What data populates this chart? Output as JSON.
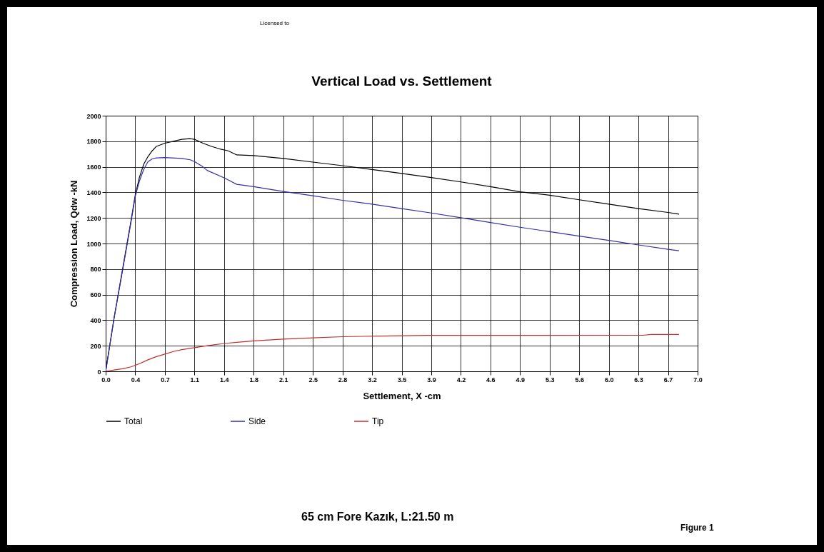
{
  "chart_data": {
    "type": "line",
    "title": "Vertical Load vs. Settlement",
    "xlabel": "Settlement, X -cm",
    "ylabel": "Compression Load,  Qdw -kN",
    "annotations": [
      "Licensed to",
      "65 cm Fore Kazık, L:21.50 m",
      "Figure 1"
    ],
    "xlim": [
      0,
      7
    ],
    "xticks": [
      {
        "value": 0,
        "label": "0.0"
      },
      {
        "value": 0.35,
        "label": "0.4"
      },
      0.7,
      {
        "value": 1.05,
        "label": "1.1"
      },
      1.4,
      {
        "value": 1.75,
        "label": "1.8"
      },
      2.1,
      {
        "value": 2.45,
        "label": "2.5"
      },
      2.8,
      {
        "value": 3.15,
        "label": "3.2"
      },
      3.5,
      {
        "value": 3.85,
        "label": "3.9"
      },
      4.2,
      {
        "value": 4.55,
        "label": "4.6"
      },
      4.9,
      {
        "value": 5.25,
        "label": "5.3"
      },
      5.6,
      {
        "value": 5.95,
        "label": "6.0"
      },
      6.3,
      {
        "value": 6.65,
        "label": "6.7"
      },
      {
        "value": 7,
        "label": "7.0"
      }
    ],
    "ylim": [
      0,
      2000
    ],
    "yticks": [
      0,
      200,
      400,
      600,
      800,
      1000,
      1200,
      1400,
      1600,
      1800,
      2000
    ],
    "grid": true,
    "legend": "bottom",
    "line_style": "solid",
    "series": [
      {
        "name": "Total",
        "color": "#000000",
        "x": [
          0,
          0.1,
          0.2,
          0.3,
          0.35,
          0.4,
          0.45,
          0.5,
          0.55,
          0.6,
          0.7,
          0.8,
          0.9,
          1.0,
          1.05,
          1.15,
          1.25,
          1.35,
          1.45,
          1.55,
          1.75,
          2.1,
          2.45,
          2.8,
          3.15,
          3.5,
          3.85,
          4.2,
          4.55,
          4.9,
          5.25,
          5.6,
          5.95,
          6.3,
          6.65,
          6.78
        ],
        "values": [
          0,
          420,
          800,
          1180,
          1380,
          1520,
          1620,
          1680,
          1725,
          1760,
          1785,
          1800,
          1815,
          1820,
          1815,
          1785,
          1760,
          1740,
          1725,
          1693,
          1688,
          1665,
          1637,
          1609,
          1579,
          1548,
          1516,
          1482,
          1445,
          1404,
          1378,
          1342,
          1308,
          1273,
          1243,
          1230
        ]
      },
      {
        "name": "Side",
        "color": "#3030a8",
        "x": [
          0,
          0.1,
          0.2,
          0.3,
          0.35,
          0.4,
          0.45,
          0.5,
          0.55,
          0.6,
          0.7,
          0.9,
          1.0,
          1.05,
          1.15,
          1.2,
          1.4,
          1.55,
          1.75,
          2.1,
          2.45,
          2.8,
          3.15,
          3.5,
          3.85,
          4.2,
          4.55,
          4.9,
          5.25,
          5.6,
          5.95,
          6.3,
          6.65,
          6.78
        ],
        "values": [
          0,
          420,
          790,
          1170,
          1370,
          1490,
          1580,
          1640,
          1662,
          1670,
          1672,
          1665,
          1655,
          1641,
          1600,
          1572,
          1514,
          1463,
          1445,
          1407,
          1374,
          1338,
          1308,
          1273,
          1239,
          1202,
          1164,
          1127,
          1093,
          1058,
          1024,
          989,
          955,
          943
        ]
      },
      {
        "name": "Tip",
        "color": "#c03030",
        "x": [
          0,
          0.1,
          0.2,
          0.3,
          0.4,
          0.5,
          0.6,
          0.7,
          0.8,
          0.9,
          1.05,
          1.2,
          1.4,
          1.6,
          1.75,
          2.1,
          2.45,
          2.8,
          3.25,
          3.8,
          6.35,
          6.45,
          6.78
        ],
        "values": [
          0,
          10,
          20,
          35,
          60,
          90,
          115,
          135,
          155,
          170,
          185,
          200,
          218,
          230,
          238,
          252,
          262,
          271,
          276,
          281,
          282,
          288,
          288
        ]
      }
    ]
  }
}
